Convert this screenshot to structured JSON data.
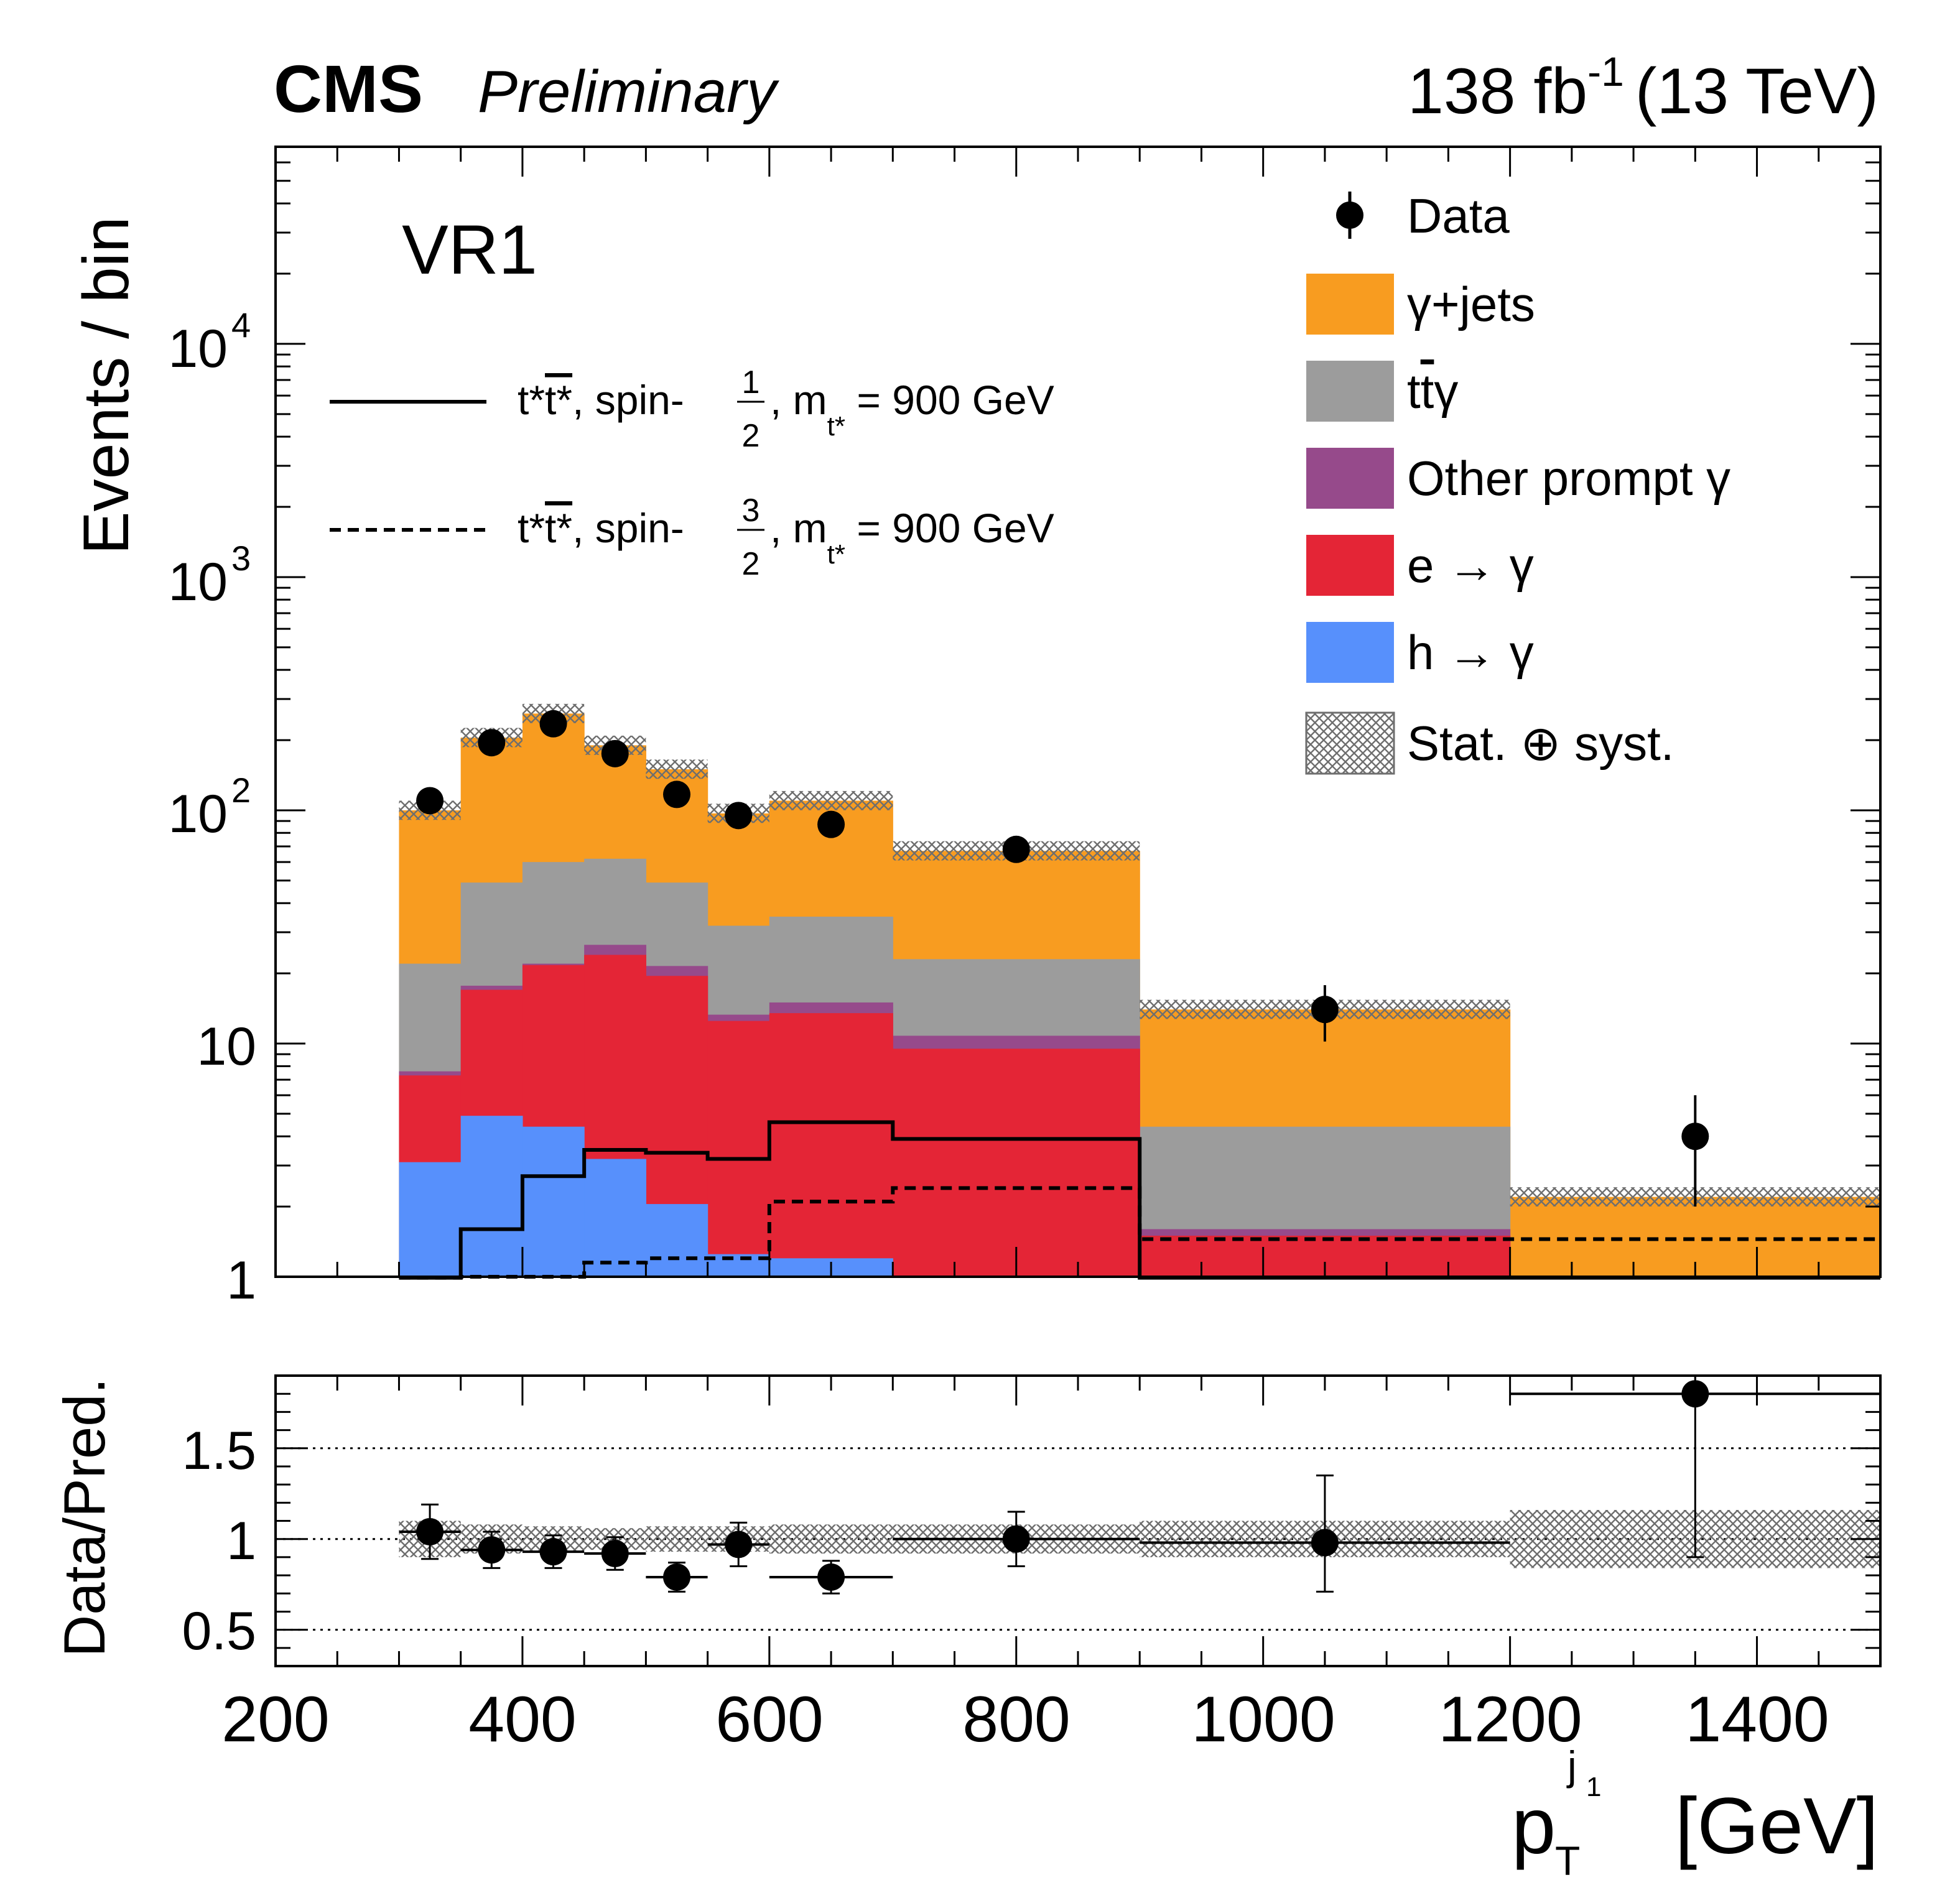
{
  "header": {
    "experiment": "CMS",
    "status": "Preliminary",
    "lumi_value": "138 fb",
    "lumi_exp": "-1",
    "energy": "(13 TeV)"
  },
  "region_label": "VR1",
  "colors": {
    "gjets": "#f89c20",
    "ttg": "#9c9c9c",
    "other": "#964a8b",
    "e_to_g": "#e42536",
    "h_to_g": "#5790fc",
    "unc": "#707070"
  },
  "chart_data": {
    "type": "bar",
    "stacked": true,
    "log_y": true,
    "ylim": [
      1,
      70000
    ],
    "xlim": [
      200,
      1500
    ],
    "ylabel": "Events / bin",
    "xlabel_main": "p",
    "xlabel_sub": "T",
    "xlabel_sup": "j",
    "xlabel_sup_sub": "1",
    "xlabel_unit": "[GeV]",
    "x_ticks": [
      "200",
      "400",
      "600",
      "800",
      "1000",
      "1200",
      "1400"
    ],
    "y_ticks": [
      {
        "base": "1",
        "exp": ""
      },
      {
        "base": "10",
        "exp": ""
      },
      {
        "base": "10",
        "exp": "2"
      },
      {
        "base": "10",
        "exp": "3"
      },
      {
        "base": "10",
        "exp": "4"
      }
    ],
    "bin_edges": [
      300,
      350,
      400,
      450,
      500,
      550,
      600,
      700,
      900,
      1200,
      1500
    ],
    "series": [
      {
        "name": "h → γ",
        "key": "h_to_g",
        "cumulative": [
          3.1,
          4.9,
          4.4,
          3.2,
          2.05,
          1.25,
          1.2,
          1.0,
          1.0,
          1.0
        ]
      },
      {
        "name": "e → γ",
        "key": "e_to_g",
        "cumulative": [
          7.3,
          17.0,
          21.7,
          24.0,
          19.5,
          12.5,
          13.5,
          9.5,
          1.5,
          1.0
        ]
      },
      {
        "name": "Other prompt γ",
        "key": "other",
        "cumulative": [
          7.6,
          17.7,
          22.0,
          26.5,
          21.5,
          13.3,
          15.0,
          10.8,
          1.6,
          1.0
        ]
      },
      {
        "name": "tt̄γ",
        "key": "ttg",
        "cumulative": [
          22.0,
          49.0,
          60.0,
          62.0,
          49.0,
          32.0,
          35.0,
          23.0,
          4.4,
          1.0
        ]
      },
      {
        "name": "γ+jets",
        "key": "gjets",
        "cumulative": [
          100,
          205,
          260,
          190,
          150,
          97,
          110,
          67,
          14,
          2.2
        ]
      }
    ],
    "data": {
      "name": "Data",
      "x": [
        325,
        375,
        425,
        475,
        525,
        575,
        650,
        800,
        1050,
        1350
      ],
      "y": [
        110,
        195,
        235,
        175,
        117,
        95,
        87,
        68,
        14,
        4
      ],
      "yerr": [
        11,
        14,
        15,
        13,
        11,
        10,
        9,
        8,
        3.8,
        2.0
      ]
    },
    "signals": [
      {
        "name": "spin-1/2",
        "style": "solid",
        "values": [
          0.8,
          1.6,
          2.7,
          3.5,
          3.4,
          3.2,
          4.6,
          3.9,
          0.8,
          0.8
        ]
      },
      {
        "name": "spin-3/2",
        "style": "dashed",
        "values": [
          0.8,
          1.0,
          1.0,
          1.15,
          1.2,
          1.2,
          2.1,
          2.4,
          1.45,
          1.45
        ]
      }
    ],
    "legend": {
      "placement": "top-right",
      "data": "Data",
      "gjets": "γ+jets",
      "ttg_pre": "t",
      "ttg_bar": "t",
      "ttg_post": "γ",
      "other": "Other prompt γ",
      "e_to_g": "e → γ",
      "h_to_g": "h → γ",
      "unc": "Stat. ⊕ syst."
    },
    "signal_legend": {
      "prefix": "t*",
      "bar": "t*",
      "mid": ", spin-",
      "num1": "1",
      "num3": "3",
      "den": "2",
      "comma": ", m",
      "msub": "t*",
      "mass": " = 900 GeV"
    },
    "ratio": {
      "ylabel": "Data/Pred.",
      "ylim": [
        0.3,
        1.9
      ],
      "y_ticks": [
        "0.5",
        "1",
        "1.5"
      ],
      "dotted_lines": [
        0.5,
        1.0,
        1.5
      ],
      "values": [
        1.04,
        0.94,
        0.93,
        0.92,
        0.79,
        0.97,
        0.79,
        1.0,
        0.98,
        1.8
      ],
      "yerr_up": [
        0.15,
        0.1,
        0.09,
        0.09,
        0.08,
        0.12,
        0.09,
        0.15,
        0.37,
        0.7
      ],
      "yerr_down": [
        0.15,
        0.1,
        0.09,
        0.09,
        0.08,
        0.12,
        0.09,
        0.15,
        0.27,
        0.9
      ],
      "band_half": [
        0.1,
        0.08,
        0.07,
        0.06,
        0.07,
        0.07,
        0.08,
        0.08,
        0.1,
        0.16
      ]
    }
  }
}
